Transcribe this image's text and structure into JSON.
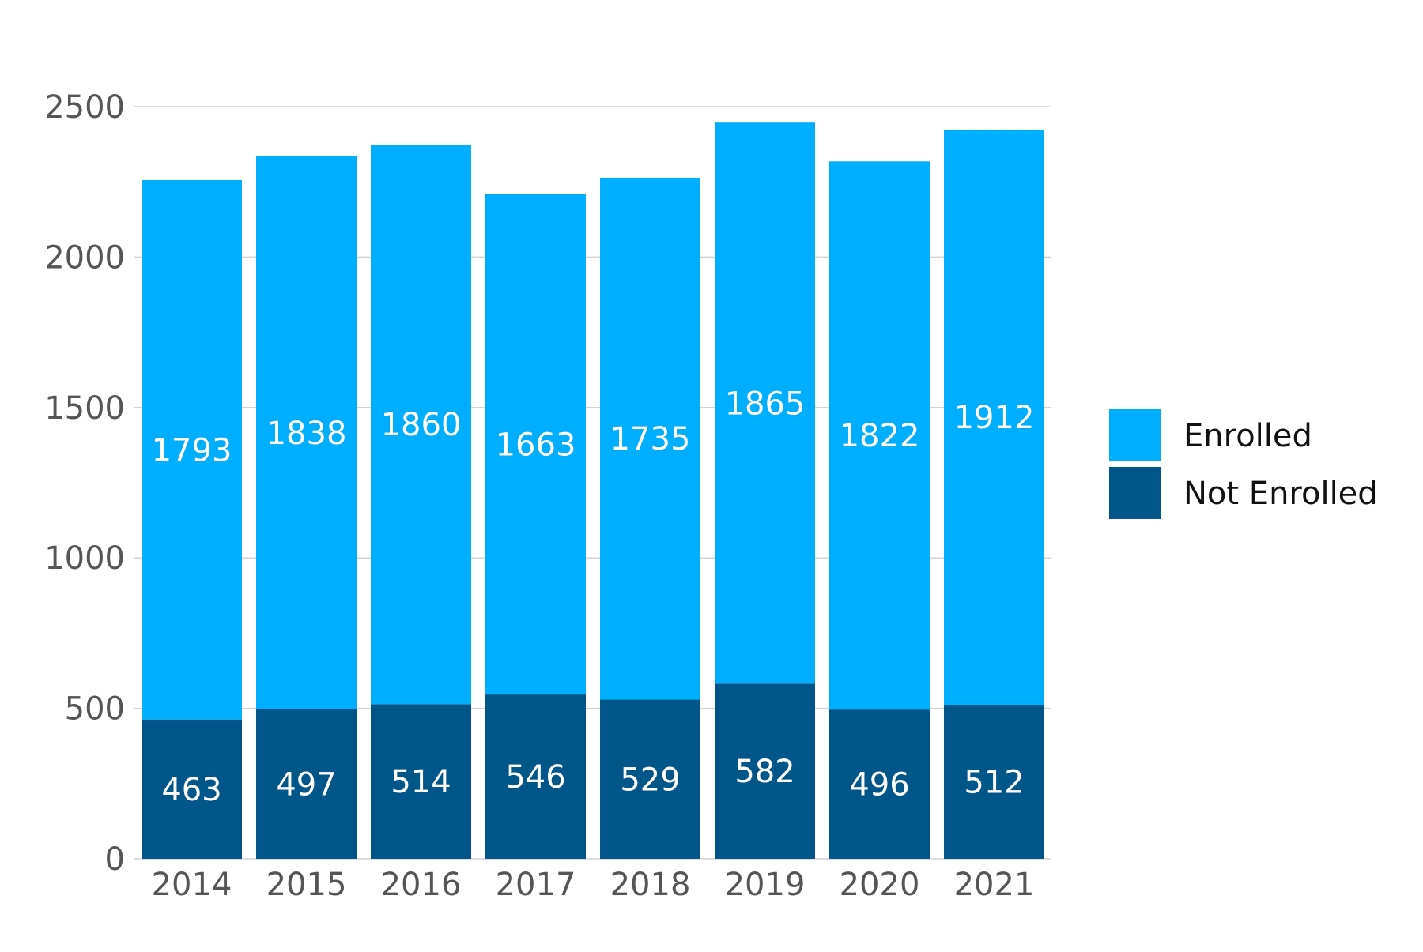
{
  "chart_data": {
    "type": "bar",
    "stacked": true,
    "title": "",
    "xlabel": "",
    "ylabel": "",
    "categories": [
      "2014",
      "2015",
      "2016",
      "2017",
      "2018",
      "2019",
      "2020",
      "2021"
    ],
    "series": [
      {
        "name": "Not Enrolled",
        "color": "#005689",
        "values": [
          463,
          497,
          514,
          546,
          529,
          582,
          496,
          512
        ]
      },
      {
        "name": "Enrolled",
        "color": "#00AEFF",
        "values": [
          1793,
          1838,
          1860,
          1663,
          1735,
          1865,
          1822,
          1912
        ]
      }
    ],
    "ylim": [
      0,
      2500
    ],
    "yticks": [
      0,
      500,
      1000,
      1500,
      2000,
      2500
    ],
    "grid": true,
    "gridline_color": "#d3d3d3",
    "legend_position": "right",
    "legend_order": [
      "Enrolled",
      "Not Enrolled"
    ]
  }
}
